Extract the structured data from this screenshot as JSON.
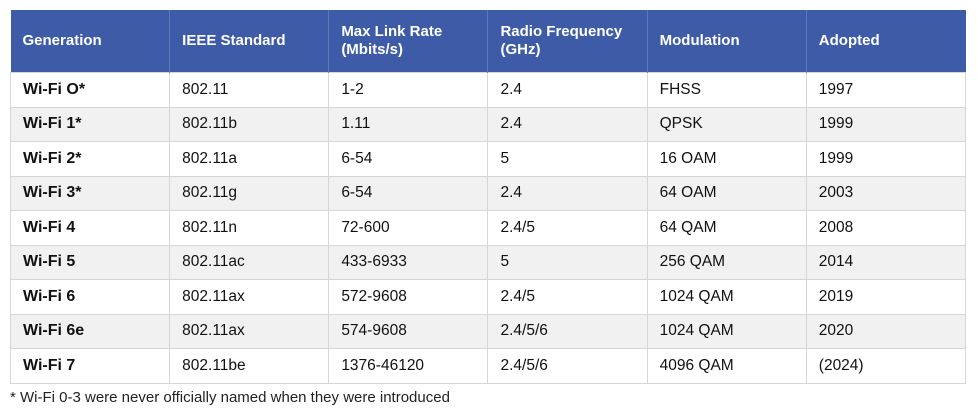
{
  "table": {
    "header": [
      "Generation",
      "IEEE Standard",
      "Max Link Rate (Mbits/s)",
      "Radio Frequency (GHz)",
      "Modulation",
      "Adopted"
    ],
    "rows": [
      [
        "Wi-Fi O*",
        "802.11",
        "1-2",
        "2.4",
        "FHSS",
        "1997"
      ],
      [
        "Wi-Fi 1*",
        "802.11b",
        "1.11",
        "2.4",
        "QPSK",
        "1999"
      ],
      [
        "Wi-Fi 2*",
        "802.11a",
        "6-54",
        "5",
        "16 OAM",
        "1999"
      ],
      [
        "Wi-Fi 3*",
        "802.11g",
        "6-54",
        "2.4",
        "64 OAM",
        "2003"
      ],
      [
        "Wi-Fi 4",
        "802.11n",
        "72-600",
        "2.4/5",
        "64 QAM",
        "2008"
      ],
      [
        "Wi-Fi 5",
        "802.11ac",
        "433-6933",
        "5",
        "256 QAM",
        "2014"
      ],
      [
        "Wi-Fi 6",
        "802.11ax",
        "572-9608",
        "2.4/5",
        "1024 QAM",
        "2019"
      ],
      [
        "Wi-Fi 6e",
        "802.11ax",
        "574-9608",
        "2.4/5/6",
        "1024 QAM",
        "2020"
      ],
      [
        "Wi-Fi 7",
        "802.11be",
        "1376-46120",
        "2.4/5/6",
        "4096 QAM",
        "(2024)"
      ]
    ],
    "footnote": "* Wi-Fi 0-3 were never officially named when they were introduced"
  }
}
